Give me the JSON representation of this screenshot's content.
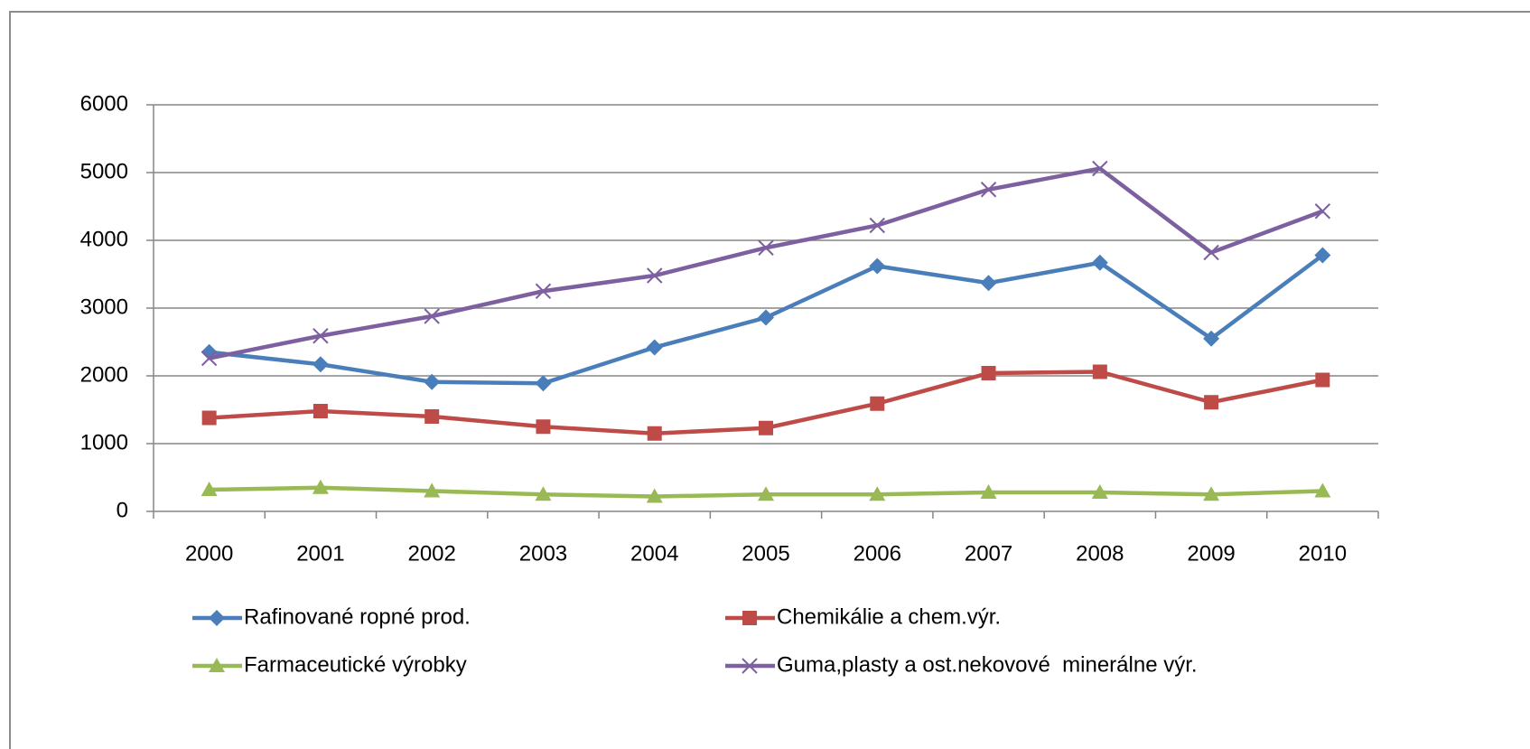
{
  "chart_data": {
    "type": "line",
    "categories": [
      "2000",
      "2001",
      "2002",
      "2003",
      "2004",
      "2005",
      "2006",
      "2007",
      "2008",
      "2009",
      "2010"
    ],
    "series": [
      {
        "name": "Rafinované ropné prod.",
        "color": "#4a7ebb",
        "marker": "diamond",
        "values": [
          2350,
          2170,
          1910,
          1890,
          2420,
          2860,
          3620,
          3370,
          3670,
          2550,
          3780
        ]
      },
      {
        "name": "Chemikálie a chem.výr.",
        "color": "#be4b48",
        "marker": "square",
        "values": [
          1380,
          1480,
          1400,
          1250,
          1150,
          1230,
          1590,
          2040,
          2060,
          1610,
          1940
        ]
      },
      {
        "name": "Farmaceutické výrobky",
        "color": "#98b954",
        "marker": "triangle",
        "values": [
          320,
          350,
          300,
          250,
          220,
          250,
          250,
          280,
          280,
          250,
          300
        ]
      },
      {
        "name": "Guma,plasty a ost.nekovové  minerálne výr.",
        "color": "#7d60a0",
        "marker": "x",
        "values": [
          2260,
          2590,
          2880,
          3250,
          3480,
          3890,
          4220,
          4750,
          5060,
          3820,
          4430
        ]
      }
    ],
    "ylim": [
      0,
      6000
    ],
    "yticks": [
      0,
      1000,
      2000,
      3000,
      4000,
      5000,
      6000
    ],
    "grid": true,
    "legend": "bottom"
  }
}
